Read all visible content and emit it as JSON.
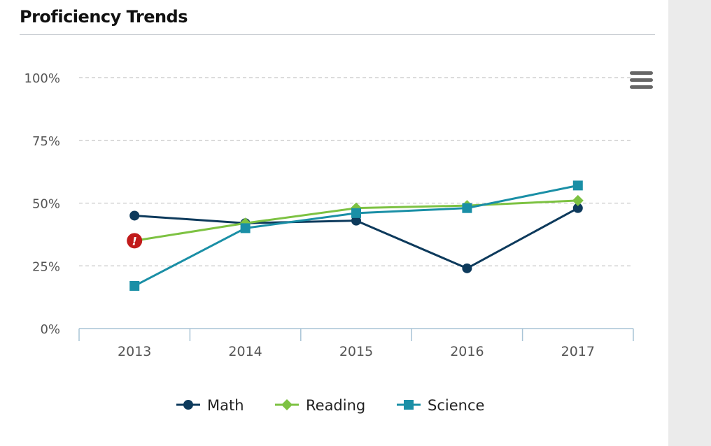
{
  "page": {
    "title": "Proficiency Trends"
  },
  "chart_data": {
    "type": "line",
    "x": [
      "2013",
      "2014",
      "2015",
      "2016",
      "2017"
    ],
    "ylim": [
      0,
      100
    ],
    "yticks": [
      0,
      25,
      50,
      75,
      100
    ],
    "ytick_labels": [
      "0%",
      "25%",
      "50%",
      "75%",
      "100%"
    ],
    "grid": "horizontal dashed",
    "legend_position": "bottom",
    "series": [
      {
        "name": "Math",
        "color": "#0d3a5c",
        "marker": "circle",
        "values": [
          45,
          42,
          43,
          24,
          48
        ]
      },
      {
        "name": "Reading",
        "color": "#7dc242",
        "marker": "diamond",
        "values": [
          35,
          42,
          48,
          49,
          51
        ],
        "warning_point_index": 0,
        "warning_color": "#c11b1b",
        "warning_symbol": "!"
      },
      {
        "name": "Science",
        "color": "#1a8fa6",
        "marker": "square",
        "values": [
          17,
          40,
          46,
          48,
          57
        ]
      }
    ]
  },
  "icons": {
    "menu": "hamburger-menu-icon",
    "warning": "exclamation-icon"
  }
}
